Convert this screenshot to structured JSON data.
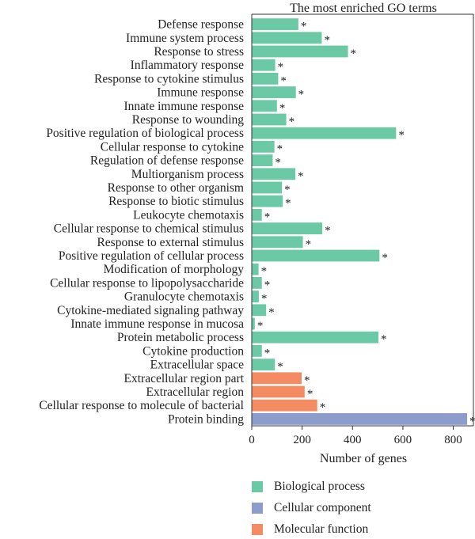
{
  "chart_data": {
    "type": "bar",
    "orientation": "horizontal",
    "title": "The most enriched GO terms",
    "xlabel": "Number of genes",
    "xlim": [
      0,
      880
    ],
    "xticks": [
      0,
      200,
      400,
      600,
      800
    ],
    "grid": false,
    "legend_placement": "bottom",
    "significance_marker": "*",
    "colors": {
      "Biological process": "#6CC9A6",
      "Cellular component": "#8C9CCB",
      "Molecular function": "#F58B63"
    },
    "legend": [
      {
        "name": "Biological process",
        "color": "#6CC9A6"
      },
      {
        "name": "Cellular component",
        "color": "#8C9CCB"
      },
      {
        "name": "Molecular function",
        "color": "#F58B63"
      }
    ],
    "categories": [
      "Defense response",
      "Immune system process",
      "Response to stress",
      "Inflammatory response",
      "Response to cytokine stimulus",
      "Immune response",
      "Innate immune response",
      "Response to wounding",
      "Positive regulation of biological process",
      "Cellular response to cytokine",
      "Regulation of defense response",
      "Multiorganism process",
      "Response to other organism",
      "Response to biotic stimulus",
      "Leukocyte chemotaxis",
      "Cellular response to chemical stimulus",
      "Response to external stimulus",
      "Positive regulation of cellular process",
      "Modification of morphology",
      "Cellular response to lipopolysaccharide",
      "Granulocyte chemotaxis",
      "Cytokine-mediated signaling pathway",
      "Innate immune response in mucosa",
      "Protein metabolic process",
      "Cytokine production",
      "Extracellular space",
      "Extracellular region part",
      "Extracellular region",
      "Cellular response to molecule of bacterial",
      "Protein binding"
    ],
    "values": [
      185,
      278,
      382,
      93,
      105,
      175,
      100,
      137,
      573,
      90,
      83,
      173,
      120,
      123,
      40,
      280,
      203,
      507,
      27,
      40,
      28,
      57,
      12,
      503,
      40,
      92,
      198,
      210,
      260,
      855
    ],
    "groups": [
      "Biological process",
      "Biological process",
      "Biological process",
      "Biological process",
      "Biological process",
      "Biological process",
      "Biological process",
      "Biological process",
      "Biological process",
      "Biological process",
      "Biological process",
      "Biological process",
      "Biological process",
      "Biological process",
      "Biological process",
      "Biological process",
      "Biological process",
      "Biological process",
      "Biological process",
      "Biological process",
      "Biological process",
      "Biological process",
      "Biological process",
      "Biological process",
      "Biological process",
      "Biological process",
      "Molecular function",
      "Molecular function",
      "Molecular function",
      "Cellular component"
    ]
  }
}
